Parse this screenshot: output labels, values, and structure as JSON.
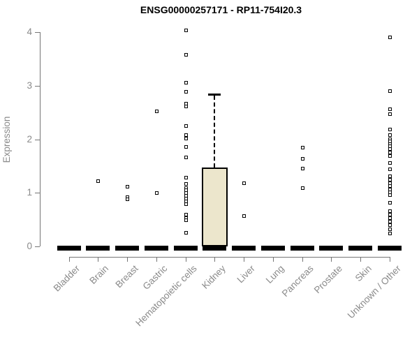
{
  "figure": {
    "title": "ENSG00000257171 - RP11-754I20.3",
    "y_axis_label": "Expression"
  },
  "colors": {
    "title": "#000000",
    "axis_line": "#757575",
    "axis_text": "#8a8a8a",
    "box_fill": "#ece6cc",
    "box_stroke": "#000000",
    "point_fill": "#ffffff",
    "point_stroke": "#000000",
    "background": "#ffffff"
  },
  "chart_data": {
    "type": "boxplot",
    "title": "ENSG00000257171 - RP11-754I20.3",
    "xlabel": "",
    "ylabel": "Expression",
    "ylim": [
      0,
      4
    ],
    "yticks": [
      0,
      1,
      2,
      3,
      4
    ],
    "grid": false,
    "legend": false,
    "categories": [
      "Bladder",
      "Brain",
      "Breast",
      "Gastric",
      "Hematopoietic cells",
      "Kidney",
      "Liver",
      "Lung",
      "Pancreas",
      "Prostate",
      "Skin",
      "Unknown / Other"
    ],
    "series": [
      {
        "name": "Bladder",
        "median": 0,
        "q1": 0,
        "q3": 0,
        "whisker_low": 0,
        "whisker_high": 0,
        "outliers": []
      },
      {
        "name": "Brain",
        "median": 0,
        "q1": 0,
        "q3": 0,
        "whisker_low": 0,
        "whisker_high": 0,
        "outliers": [
          1.22
        ]
      },
      {
        "name": "Breast",
        "median": 0,
        "q1": 0,
        "q3": 0,
        "whisker_low": 0,
        "whisker_high": 0,
        "outliers": [
          1.12,
          0.93,
          0.88
        ]
      },
      {
        "name": "Gastric",
        "median": 0,
        "q1": 0,
        "q3": 0,
        "whisker_low": 0,
        "whisker_high": 0,
        "outliers": [
          2.53,
          1.0
        ]
      },
      {
        "name": "Hematopoietic cells",
        "median": 0,
        "q1": 0,
        "q3": 0,
        "whisker_low": 0,
        "whisker_high": 0,
        "outliers": [
          4.04,
          3.58,
          3.06,
          2.89,
          2.67,
          2.62,
          2.26,
          2.08,
          2.02,
          1.86,
          1.67,
          1.29,
          1.17,
          1.1,
          1.05,
          1.0,
          0.95,
          0.9,
          0.85,
          0.8,
          0.6,
          0.54,
          0.49,
          0.26
        ]
      },
      {
        "name": "Kidney",
        "median": 0,
        "q1": 0,
        "q3": 1.47,
        "whisker_low": 0,
        "whisker_high": 2.84,
        "outliers": []
      },
      {
        "name": "Liver",
        "median": 0,
        "q1": 0,
        "q3": 0,
        "whisker_low": 0,
        "whisker_high": 0,
        "outliers": [
          1.19,
          0.57
        ]
      },
      {
        "name": "Lung",
        "median": 0,
        "q1": 0,
        "q3": 0,
        "whisker_low": 0,
        "whisker_high": 0,
        "outliers": []
      },
      {
        "name": "Pancreas",
        "median": 0,
        "q1": 0,
        "q3": 0,
        "whisker_low": 0,
        "whisker_high": 0,
        "outliers": [
          1.85,
          1.64,
          1.46,
          1.1
        ]
      },
      {
        "name": "Prostate",
        "median": 0,
        "q1": 0,
        "q3": 0,
        "whisker_low": 0,
        "whisker_high": 0,
        "outliers": []
      },
      {
        "name": "Skin",
        "median": 0,
        "q1": 0,
        "q3": 0,
        "whisker_low": 0,
        "whisker_high": 0,
        "outliers": []
      },
      {
        "name": "Unknown / Other",
        "median": 0,
        "q1": 0,
        "q3": 0,
        "whisker_low": 0,
        "whisker_high": 0,
        "outliers": [
          3.91,
          2.91,
          2.57,
          2.48,
          2.19,
          2.08,
          2.01,
          1.97,
          1.91,
          1.88,
          1.82,
          1.76,
          1.7,
          1.56,
          1.45,
          1.31,
          1.25,
          1.19,
          1.13,
          1.07,
          1.01,
          0.96,
          0.82,
          0.66,
          0.6,
          0.53,
          0.47,
          0.4,
          0.33,
          0.25
        ]
      }
    ]
  }
}
